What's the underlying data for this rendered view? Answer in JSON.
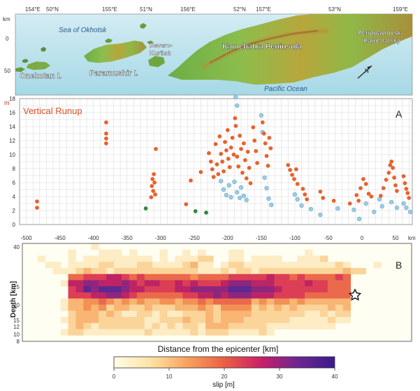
{
  "map": {
    "top_ticks": [
      "154°E",
      "50°N",
      "155°E",
      "51°N",
      "156°E",
      "52°N",
      "157°E",
      "53°N",
      "159°E"
    ],
    "left_axis_unit": "km",
    "left_ticks": [
      "0",
      "50"
    ],
    "place_labels": {
      "sea": "Sea of Okhotsk",
      "ocean": "Pacific Ocean",
      "onekotan": "Onekotan I.",
      "paramushir": "Paramushir I.",
      "severo_1": "Severo-",
      "severo_2": "Kurilsk",
      "kamchatka": "Kamchatka Peninsula",
      "petro_1": "Petropavlovsk-",
      "petro_2": "Kamchatsky",
      "north": "N"
    }
  },
  "panel_a": {
    "title": "Vertical Runup",
    "letter": "A",
    "y_unit": "m",
    "x_unit": "km"
  },
  "panel_b": {
    "letter": "B",
    "xlabel": "Distance from the epicenter [km]",
    "ylabel": "Depth [km]",
    "colorbar_label": "slip [m]"
  },
  "chart_data": [
    {
      "type": "scatter",
      "title": "Vertical Runup",
      "ylabel": "m",
      "xlabel": "km",
      "xlim": [
        -510,
        75
      ],
      "ylim": [
        0,
        18
      ],
      "x_ticks": [
        -500,
        -450,
        -400,
        -350,
        -300,
        -250,
        -200,
        -150,
        -100,
        -50,
        0,
        50
      ],
      "y_ticks": [
        0,
        2,
        4,
        6,
        8,
        10,
        12,
        14,
        16,
        18
      ],
      "grid": true,
      "series": [
        {
          "color": "#e8612c",
          "points": [
            [
              -484,
              3.3
            ],
            [
              -484,
              2.4
            ],
            [
              -381,
              14.6
            ],
            [
              -381,
              13.0
            ],
            [
              -381,
              12.3
            ],
            [
              -381,
              11.6
            ],
            [
              -307,
              10.8
            ],
            [
              -310,
              7.2
            ],
            [
              -312,
              6.5
            ],
            [
              -309,
              6.0
            ],
            [
              -313,
              5.5
            ],
            [
              -311,
              4.8
            ],
            [
              -308,
              4.3
            ],
            [
              -314,
              3.9
            ],
            [
              -262,
              2.9
            ],
            [
              -255,
              6.3
            ],
            [
              -240,
              7.5
            ],
            [
              -228,
              10.2
            ],
            [
              -225,
              9.0
            ],
            [
              -223,
              7.9
            ],
            [
              -221,
              6.8
            ],
            [
              -218,
              11.5
            ],
            [
              -216,
              8.6
            ],
            [
              -214,
              7.2
            ],
            [
              -212,
              12.6
            ],
            [
              -210,
              10.1
            ],
            [
              -208,
              9.0
            ],
            [
              -206,
              7.6
            ],
            [
              -204,
              11.8
            ],
            [
              -202,
              10.6
            ],
            [
              -200,
              13.5
            ],
            [
              -199,
              9.4
            ],
            [
              -197,
              8.2
            ],
            [
              -195,
              11.0
            ],
            [
              -193,
              12.4
            ],
            [
              -191,
              10.0
            ],
            [
              -189,
              15.2
            ],
            [
              -188,
              14.1
            ],
            [
              -186,
              9.7
            ],
            [
              -184,
              8.3
            ],
            [
              -182,
              12.7
            ],
            [
              -180,
              10.8
            ],
            [
              -178,
              7.4
            ],
            [
              -176,
              11.6
            ],
            [
              -174,
              9.2
            ],
            [
              -172,
              6.6
            ],
            [
              -170,
              10.4
            ],
            [
              -168,
              8.1
            ],
            [
              -166,
              5.9
            ],
            [
              -162,
              13.9
            ],
            [
              -160,
              12.0
            ],
            [
              -158,
              10.5
            ],
            [
              -156,
              8.8
            ],
            [
              -148,
              14.6
            ],
            [
              -146,
              13.0
            ],
            [
              -144,
              11.6
            ],
            [
              -142,
              9.8
            ],
            [
              -140,
              8.4
            ],
            [
              -138,
              12.4
            ],
            [
              -136,
              10.9
            ],
            [
              -110,
              8.5
            ],
            [
              -107,
              7.8
            ],
            [
              -104,
              7.1
            ],
            [
              -101,
              6.5
            ],
            [
              -98,
              7.9
            ],
            [
              -96,
              5.8
            ],
            [
              -88,
              5.1
            ],
            [
              -85,
              4.3
            ],
            [
              -82,
              3.6
            ],
            [
              -62,
              4.7
            ],
            [
              -58,
              3.8
            ],
            [
              -42,
              3.4
            ],
            [
              -18,
              3.0
            ],
            [
              -8,
              4.2
            ],
            [
              -5,
              3.4
            ],
            [
              -2,
              5.2
            ],
            [
              2,
              6.5
            ],
            [
              6,
              5.8
            ],
            [
              10,
              4.4
            ],
            [
              14,
              4.0
            ],
            [
              28,
              4.1
            ],
            [
              32,
              5.2
            ],
            [
              36,
              6.4
            ],
            [
              40,
              7.4
            ],
            [
              42,
              8.5
            ],
            [
              44,
              9.0
            ],
            [
              46,
              8.1
            ],
            [
              48,
              6.7
            ],
            [
              50,
              5.6
            ],
            [
              52,
              4.8
            ],
            [
              62,
              6.9
            ],
            [
              64,
              5.9
            ],
            [
              66,
              5.1
            ],
            [
              68,
              4.5
            ],
            [
              70,
              3.8
            ]
          ]
        },
        {
          "color": "#9ccbe3",
          "points": [
            [
              -210,
              6.2
            ],
            [
              -206,
              5.0
            ],
            [
              -202,
              4.2
            ],
            [
              -198,
              5.6
            ],
            [
              -195,
              3.9
            ],
            [
              -190,
              6.1
            ],
            [
              -186,
              4.6
            ],
            [
              -182,
              3.8
            ],
            [
              -188,
              18.2
            ],
            [
              -186,
              17.0
            ],
            [
              -180,
              5.3
            ],
            [
              -176,
              4.1
            ],
            [
              -172,
              3.5
            ],
            [
              -150,
              15.6
            ],
            [
              -148,
              13.2
            ],
            [
              -145,
              6.7
            ],
            [
              -142,
              5.2
            ],
            [
              -139,
              3.7
            ],
            [
              -135,
              2.8
            ],
            [
              -100,
              4.3
            ],
            [
              -96,
              3.6
            ],
            [
              -90,
              2.7
            ],
            [
              -76,
              2.2
            ],
            [
              -62,
              1.4
            ],
            [
              -36,
              2.3
            ],
            [
              -12,
              2.1
            ],
            [
              -4,
              0.8
            ],
            [
              6,
              3.0
            ],
            [
              18,
              1.8
            ],
            [
              26,
              3.6
            ],
            [
              30,
              2.6
            ],
            [
              44,
              3.2
            ],
            [
              52,
              2.4
            ],
            [
              62,
              3.0
            ],
            [
              66,
              2.4
            ],
            [
              72,
              1.8
            ]
          ]
        },
        {
          "color": "#2a8a3e",
          "points": [
            [
              -322,
              2.3
            ],
            [
              -248,
              1.9
            ],
            [
              -232,
              1.7
            ]
          ]
        }
      ]
    },
    {
      "type": "heatmap",
      "xlabel": "Distance from the epicenter [km]",
      "ylabel": "Depth [km]",
      "y_ticks": [
        40,
        25,
        20,
        15,
        12,
        10,
        8
      ],
      "colorbar": {
        "label": "slip [m]",
        "min": 0,
        "max": 40,
        "ticks": [
          0,
          10,
          20,
          30,
          40
        ],
        "colors": [
          "#fffde8",
          "#fde2a3",
          "#f8a35e",
          "#ec5f43",
          "#c91e68",
          "#6d2791",
          "#3a1a8c"
        ]
      },
      "grid_rows": [
        "000000000100000000000000000000000000000000000000000",
        "000000100011101000100101000110000000010000000000000",
        "001000101111111110101112200110111100111200000000000",
        "000110111122111221111231101221111111111112100010000",
        "000011123221222222222221112122122222222222322000000",
        "000000556667765655555545555666667665655556500000000",
        "000001778877787677667676667888777666676655500000000",
        "000000679899987766667788888999888766666655500000000",
        "000000666778876555555667787888777666655555500000000",
        "000001334454343433443445455555343443433333300000000",
        "000001334342332232223334324444232323222232300000000",
        "000000233323211221211222323333222222211212200000000",
        "000001233322222211222322323332222221111121100000000",
        "000000232122222212121221333222221111111110000000000",
        "000001221111111121111121222111121000000000000000000",
        "000000000000000000000000000000000000000000000000000"
      ]
    }
  ]
}
